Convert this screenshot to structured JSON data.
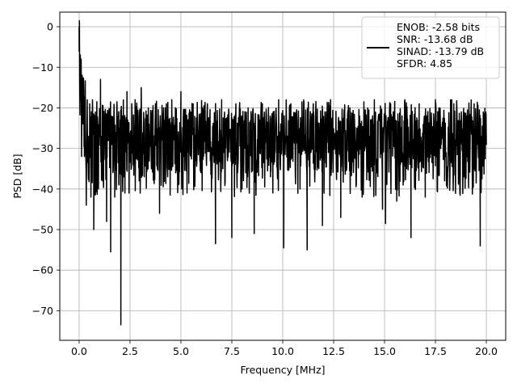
{
  "chart_data": {
    "type": "line",
    "xlabel": "Frequency [MHz]",
    "ylabel": "PSD [dB]",
    "xlim": [
      -0.95,
      20.95
    ],
    "ylim": [
      -77.3,
      3.6
    ],
    "xticks": [
      0.0,
      2.5,
      5.0,
      7.5,
      10.0,
      12.5,
      15.0,
      17.5,
      20.0
    ],
    "xtick_labels": [
      "0.0",
      "2.5",
      "5.0",
      "7.5",
      "10.0",
      "12.5",
      "15.0",
      "17.5",
      "20.0"
    ],
    "yticks": [
      0,
      -10,
      -20,
      -30,
      -40,
      -50,
      -60,
      -70
    ],
    "ytick_labels": [
      "0",
      "−10",
      "−20",
      "−30",
      "−40",
      "−50",
      "−60",
      "−70"
    ],
    "grid": true,
    "legend": {
      "placement": "upper-right",
      "entries": [
        "ENOB: -2.58 bits",
        "SNR: -13.68 dB",
        "SINAD: -13.79 dB",
        "SFDR: 4.85"
      ]
    },
    "series": [
      {
        "color": "#000000",
        "noise_band": {
          "upper_db": -20,
          "lower_db": -36
        },
        "points": [
          [
            0.0,
            0.0
          ],
          [
            0.02,
            -5
          ],
          [
            0.04,
            -20
          ],
          [
            0.06,
            -8
          ],
          [
            0.08,
            -18
          ],
          [
            0.1,
            -11
          ],
          [
            0.12,
            -32
          ],
          [
            0.15,
            -12
          ],
          [
            0.18,
            -22
          ],
          [
            0.22,
            -14
          ],
          [
            0.26,
            -32
          ],
          [
            0.3,
            -17
          ],
          [
            0.35,
            -44
          ],
          [
            0.4,
            -18
          ],
          [
            0.47,
            -30
          ],
          [
            0.52,
            -19
          ],
          [
            0.58,
            -42
          ],
          [
            0.65,
            -20
          ],
          [
            0.72,
            -50
          ],
          [
            0.8,
            -21
          ],
          [
            0.88,
            -34
          ],
          [
            0.95,
            -40
          ],
          [
            1.05,
            -13
          ],
          [
            1.15,
            -38
          ],
          [
            1.25,
            -22
          ],
          [
            1.35,
            -48
          ],
          [
            1.45,
            -21
          ],
          [
            1.55,
            -55.5
          ],
          [
            1.65,
            -23
          ],
          [
            1.75,
            -42
          ],
          [
            1.85,
            -20
          ],
          [
            1.95,
            -39
          ],
          [
            2.0,
            -25
          ],
          [
            2.05,
            -73.5
          ],
          [
            2.12,
            -22
          ],
          [
            2.25,
            -41
          ],
          [
            2.35,
            -16
          ],
          [
            2.45,
            -41
          ],
          [
            2.6,
            -22
          ],
          [
            2.75,
            -18
          ],
          [
            2.95,
            -38
          ],
          [
            3.05,
            -15
          ],
          [
            3.2,
            -37
          ],
          [
            3.4,
            -20
          ],
          [
            3.55,
            -35
          ],
          [
            3.75,
            -19
          ],
          [
            3.95,
            -46
          ],
          [
            4.15,
            -20
          ],
          [
            4.35,
            -37
          ],
          [
            4.55,
            -18
          ],
          [
            4.75,
            -36
          ],
          [
            5.0,
            -16
          ],
          [
            5.3,
            -41
          ],
          [
            5.6,
            -19
          ],
          [
            5.95,
            -35
          ],
          [
            6.3,
            -19
          ],
          [
            6.7,
            -53.5
          ],
          [
            7.0,
            -18
          ],
          [
            7.5,
            -52
          ],
          [
            7.7,
            -19
          ],
          [
            8.0,
            -40
          ],
          [
            8.3,
            -20
          ],
          [
            8.6,
            -51
          ],
          [
            9.0,
            -19
          ],
          [
            9.4,
            -37
          ],
          [
            9.8,
            -18
          ],
          [
            10.05,
            -54.5
          ],
          [
            10.4,
            -19
          ],
          [
            10.85,
            -40
          ],
          [
            11.2,
            -55
          ],
          [
            11.5,
            -19
          ],
          [
            11.95,
            -49
          ],
          [
            12.35,
            -18
          ],
          [
            12.85,
            -47
          ],
          [
            13.3,
            -20
          ],
          [
            13.9,
            -42
          ],
          [
            14.5,
            -18
          ],
          [
            14.9,
            -45
          ],
          [
            15.05,
            -48.5
          ],
          [
            15.3,
            -19
          ],
          [
            15.6,
            -43
          ],
          [
            16.0,
            -18
          ],
          [
            16.3,
            -52
          ],
          [
            16.7,
            -19
          ],
          [
            17.0,
            -42
          ],
          [
            17.5,
            -18
          ],
          [
            17.95,
            -38
          ],
          [
            18.4,
            -19
          ],
          [
            18.9,
            -37
          ],
          [
            19.4,
            -19
          ],
          [
            19.7,
            -54
          ],
          [
            19.85,
            -21
          ],
          [
            20.0,
            -29
          ]
        ]
      }
    ]
  }
}
